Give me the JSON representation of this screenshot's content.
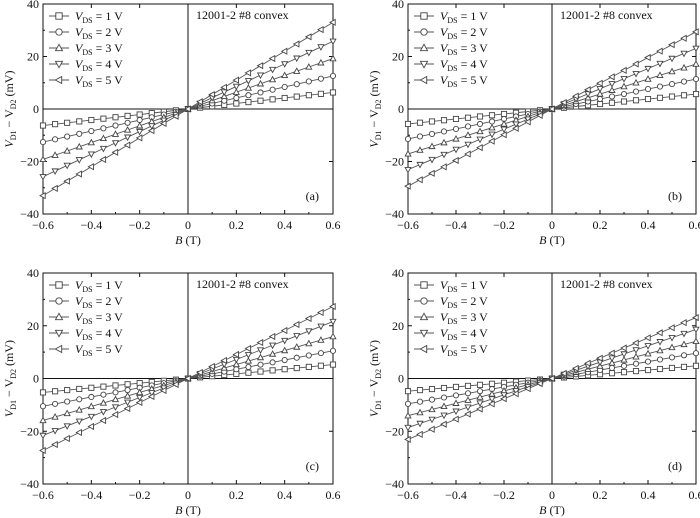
{
  "chart_data": [
    {
      "type": "line",
      "panel_label": "(a)",
      "annotation": "12001-2 #8  convex",
      "xlabel_var": "B",
      "xlabel_unit": "(T)",
      "ylabel_left": "V",
      "ylabel_sub1": "D1",
      "ylabel_mid": " − V",
      "ylabel_sub2": "D2",
      "ylabel_unit": " (mV)",
      "xlim": [
        -0.6,
        0.6
      ],
      "ylim": [
        -40,
        40
      ],
      "xticks": [
        -0.6,
        -0.4,
        -0.2,
        0,
        0.2,
        0.4,
        0.6
      ],
      "yticks": [
        -40,
        -20,
        0,
        20,
        40
      ],
      "xtick_labels": [
        "−0.6",
        "−0.4",
        "−0.2",
        "0",
        "0.2",
        "0.4",
        "0.6"
      ],
      "ytick_labels": [
        "−40",
        "−20",
        "0",
        "20",
        "40"
      ],
      "legend_position": "top-left",
      "series": [
        {
          "name_var": "V",
          "name_sub": "DS",
          "name_rest": " = 1 V",
          "marker": "square",
          "slope": 10.5
        },
        {
          "name_var": "V",
          "name_sub": "DS",
          "name_rest": " = 2 V",
          "marker": "circle",
          "slope": 21
        },
        {
          "name_var": "V",
          "name_sub": "DS",
          "name_rest": " = 3 V",
          "marker": "triangle-up",
          "slope": 32
        },
        {
          "name_var": "V",
          "name_sub": "DS",
          "name_rest": " = 4 V",
          "marker": "triangle-down",
          "slope": 43
        },
        {
          "name_var": "V",
          "name_sub": "DS",
          "name_rest": " = 5 V",
          "marker": "triangle-left",
          "slope": 55
        }
      ]
    },
    {
      "type": "line",
      "panel_label": "(b)",
      "annotation": "12001-2 #8  convex",
      "xlabel_var": "B",
      "xlabel_unit": "(T)",
      "ylabel_left": "V",
      "ylabel_sub1": "D1",
      "ylabel_mid": " − V",
      "ylabel_sub2": "D2",
      "ylabel_unit": " (mV)",
      "xlim": [
        -0.6,
        0.6
      ],
      "ylim": [
        -40,
        40
      ],
      "xticks": [
        -0.6,
        -0.4,
        -0.2,
        0,
        0.2,
        0.4,
        0.6
      ],
      "yticks": [
        -40,
        -20,
        0,
        20,
        40
      ],
      "xtick_labels": [
        "−0.6",
        "−0.4",
        "−0.2",
        "0",
        "0.2",
        "0.4",
        "0.6"
      ],
      "ytick_labels": [
        "−40",
        "−20",
        "0",
        "20",
        "40"
      ],
      "legend_position": "top-left",
      "series": [
        {
          "name_var": "V",
          "name_sub": "DS",
          "name_rest": " = 1 V",
          "marker": "square",
          "slope": 9.5
        },
        {
          "name_var": "V",
          "name_sub": "DS",
          "name_rest": " = 2 V",
          "marker": "circle",
          "slope": 19
        },
        {
          "name_var": "V",
          "name_sub": "DS",
          "name_rest": " = 3 V",
          "marker": "triangle-up",
          "slope": 28.5
        },
        {
          "name_var": "V",
          "name_sub": "DS",
          "name_rest": " = 4 V",
          "marker": "triangle-down",
          "slope": 38.5
        },
        {
          "name_var": "V",
          "name_sub": "DS",
          "name_rest": " = 5 V",
          "marker": "triangle-left",
          "slope": 49
        }
      ]
    },
    {
      "type": "line",
      "panel_label": "(c)",
      "annotation": "12001-2 #8  convex",
      "xlabel_var": "B",
      "xlabel_unit": "(T)",
      "ylabel_left": "V",
      "ylabel_sub1": "D1",
      "ylabel_mid": " − V",
      "ylabel_sub2": "D2",
      "ylabel_unit": " (mV)",
      "xlim": [
        -0.6,
        0.6
      ],
      "ylim": [
        -40,
        40
      ],
      "xticks": [
        -0.6,
        -0.4,
        -0.2,
        0,
        0.2,
        0.4,
        0.6
      ],
      "yticks": [
        -40,
        -20,
        0,
        20,
        40
      ],
      "xtick_labels": [
        "−0.6",
        "−0.4",
        "−0.2",
        "0",
        "0.2",
        "0.4",
        "0.6"
      ],
      "ytick_labels": [
        "−40",
        "−20",
        "0",
        "20",
        "40"
      ],
      "legend_position": "top-left",
      "series": [
        {
          "name_var": "V",
          "name_sub": "DS",
          "name_rest": " = 1 V",
          "marker": "square",
          "slope": 8.8
        },
        {
          "name_var": "V",
          "name_sub": "DS",
          "name_rest": " = 2 V",
          "marker": "circle",
          "slope": 17.5
        },
        {
          "name_var": "V",
          "name_sub": "DS",
          "name_rest": " = 3 V",
          "marker": "triangle-up",
          "slope": 26.5
        },
        {
          "name_var": "V",
          "name_sub": "DS",
          "name_rest": " = 4 V",
          "marker": "triangle-down",
          "slope": 36
        },
        {
          "name_var": "V",
          "name_sub": "DS",
          "name_rest": " = 5 V",
          "marker": "triangle-left",
          "slope": 45.5
        }
      ]
    },
    {
      "type": "line",
      "panel_label": "(d)",
      "annotation": "12001-2 #8  convex",
      "xlabel_var": "B",
      "xlabel_unit": "(T)",
      "ylabel_left": "V",
      "ylabel_sub1": "D1",
      "ylabel_mid": " − V",
      "ylabel_sub2": "D2",
      "ylabel_unit": " (mV)",
      "xlim": [
        -0.6,
        0.6
      ],
      "ylim": [
        -40,
        40
      ],
      "xticks": [
        -0.6,
        -0.4,
        -0.2,
        0,
        0.2,
        0.4,
        0.6
      ],
      "yticks": [
        -40,
        -20,
        0,
        20,
        40
      ],
      "xtick_labels": [
        "−0.6",
        "−0.4",
        "−0.2",
        "0",
        "0.2",
        "0.4",
        "0.6"
      ],
      "ytick_labels": [
        "−40",
        "−20",
        "0",
        "20",
        "40"
      ],
      "legend_position": "top-left",
      "series": [
        {
          "name_var": "V",
          "name_sub": "DS",
          "name_rest": " = 1 V",
          "marker": "square",
          "slope": 8
        },
        {
          "name_var": "V",
          "name_sub": "DS",
          "name_rest": " = 2 V",
          "marker": "circle",
          "slope": 16
        },
        {
          "name_var": "V",
          "name_sub": "DS",
          "name_rest": " = 3 V",
          "marker": "triangle-up",
          "slope": 23.5
        },
        {
          "name_var": "V",
          "name_sub": "DS",
          "name_rest": " = 4 V",
          "marker": "triangle-down",
          "slope": 31
        },
        {
          "name_var": "V",
          "name_sub": "DS",
          "name_rest": " = 5 V",
          "marker": "triangle-left",
          "slope": 38.5
        }
      ]
    }
  ]
}
